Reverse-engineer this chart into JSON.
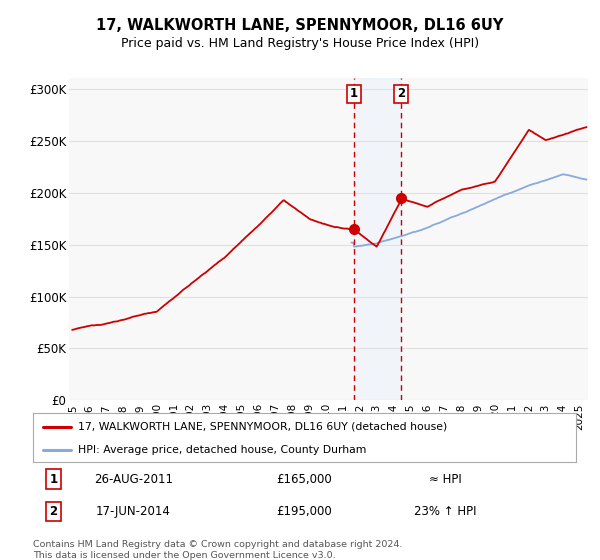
{
  "title": "17, WALKWORTH LANE, SPENNYMOOR, DL16 6UY",
  "subtitle": "Price paid vs. HM Land Registry's House Price Index (HPI)",
  "ylim": [
    0,
    310000
  ],
  "yticks": [
    0,
    50000,
    100000,
    150000,
    200000,
    250000,
    300000
  ],
  "ytick_labels": [
    "£0",
    "£50K",
    "£100K",
    "£150K",
    "£200K",
    "£250K",
    "£300K"
  ],
  "xlim_start": 1994.8,
  "xlim_end": 2025.5,
  "bg_color": "#ffffff",
  "plot_bg_color": "#f8f8f8",
  "grid_color": "#e0e0e0",
  "red_line_color": "#cc0000",
  "blue_line_color": "#88aadd",
  "sale1_x": 2011.65,
  "sale1_y": 165000,
  "sale2_x": 2014.46,
  "sale2_y": 195000,
  "sale_marker_color": "#cc0000",
  "sale_fill_color": "#ddeeff",
  "legend_label_red": "17, WALKWORTH LANE, SPENNYMOOR, DL16 6UY (detached house)",
  "legend_label_blue": "HPI: Average price, detached house, County Durham",
  "table_row1_num": "1",
  "table_row1_date": "26-AUG-2011",
  "table_row1_price": "£165,000",
  "table_row1_hpi": "≈ HPI",
  "table_row2_num": "2",
  "table_row2_date": "17-JUN-2014",
  "table_row2_price": "£195,000",
  "table_row2_hpi": "23% ↑ HPI",
  "footer": "Contains HM Land Registry data © Crown copyright and database right 2024.\nThis data is licensed under the Open Government Licence v3.0."
}
